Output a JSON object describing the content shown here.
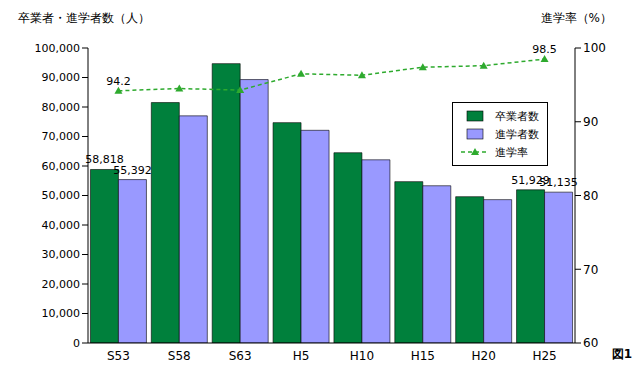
{
  "chart_data": {
    "type": "bar",
    "y_label": "卒業者・進学者数（人）",
    "y2_label": "進学率（%）",
    "annotation": "図1",
    "categories": [
      "S53",
      "S58",
      "S63",
      "H5",
      "H10",
      "H15",
      "H20",
      "H25"
    ],
    "series": [
      {
        "name": "卒業者数",
        "type": "bar",
        "color": "#00803c",
        "values": [
          58818,
          81500,
          94700,
          74700,
          64500,
          54700,
          49600,
          51929
        ],
        "value_labels": [
          "58,818",
          null,
          null,
          null,
          null,
          null,
          null,
          "51,929"
        ]
      },
      {
        "name": "進学者数",
        "type": "bar",
        "color": "#9999ff",
        "values": [
          55392,
          77000,
          89300,
          72100,
          62100,
          53300,
          48600,
          51135
        ],
        "value_labels": [
          "55,392",
          null,
          null,
          null,
          null,
          null,
          null,
          "51,135"
        ]
      },
      {
        "name": "進学率",
        "type": "line",
        "axis": "y2",
        "color": "#2eaa2e",
        "marker": "triangle",
        "line_style": "dashed",
        "values": [
          94.2,
          94.5,
          94.3,
          96.5,
          96.3,
          97.4,
          97.6,
          98.5
        ],
        "value_labels": [
          "94.2",
          null,
          null,
          null,
          null,
          null,
          null,
          "98.5"
        ]
      }
    ],
    "ylim": [
      0,
      100000
    ],
    "yticks": [
      0,
      {
        "value": 10000,
        "label": "10,000"
      },
      {
        "value": 20000,
        "label": "20,000"
      },
      {
        "value": 30000,
        "label": "30,000"
      },
      {
        "value": 40000,
        "label": "40,000"
      },
      {
        "value": 50000,
        "label": "50,000"
      },
      {
        "value": 60000,
        "label": "60,000"
      },
      {
        "value": 70000,
        "label": "70,000"
      },
      {
        "value": 80000,
        "label": "80,000"
      },
      {
        "value": 90000,
        "label": "90,000"
      },
      {
        "value": 100000,
        "label": "100,000"
      }
    ],
    "y2lim": [
      60,
      100
    ],
    "y2ticks": [
      60,
      70,
      80,
      90,
      100
    ],
    "grid": false,
    "legend": "right",
    "data_labels": true
  }
}
